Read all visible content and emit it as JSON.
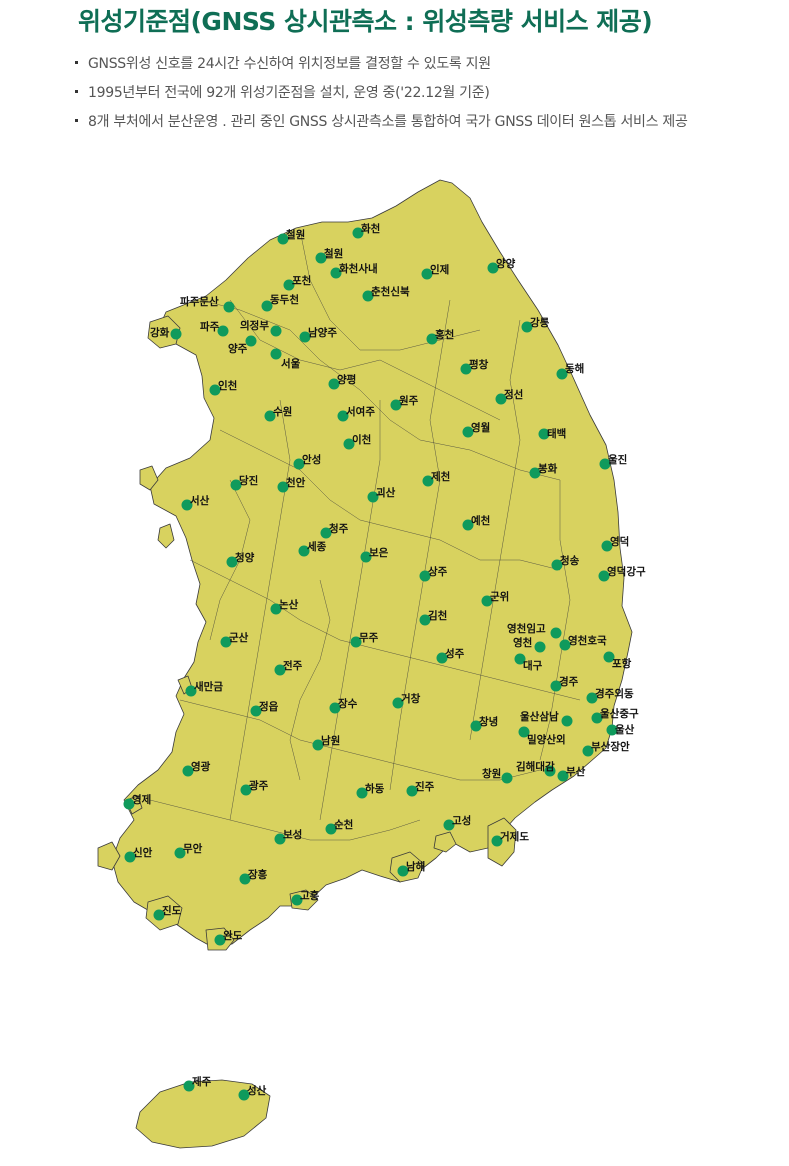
{
  "title": "위성기준점(GNSS 상시관측소 : 위성측량 서비스 제공)",
  "bullets": [
    "GNSS위성 신호를 24시간 수신하여 위치정보를 결정할 수 있도록 지원",
    "1995년부터 전국에 92개 위성기준점을 설치, 운영 중('22.12월 기준)",
    "8개 부처에서 분산운영 . 관리 중인 GNSS 상시관측소를 통합하여 국가 GNSS 데이터 원스톱 서비스 제공"
  ],
  "colors": {
    "title": "#0f6e55",
    "land": "#d8d25f",
    "station": "#0f9a5c"
  },
  "stations": [
    "철원",
    "화천",
    "철원",
    "양양",
    "화천사내",
    "인제",
    "포천",
    "춘천신북",
    "파주문산",
    "동두천",
    "강릉",
    "강화",
    "파주",
    "의정부",
    "남양주",
    "홍천",
    "양주",
    "서울",
    "동해",
    "평창",
    "양평",
    "인천",
    "원주",
    "정선",
    "수원",
    "서여주",
    "태백",
    "영월",
    "이천",
    "울진",
    "안성",
    "봉화",
    "당진",
    "천안",
    "제천",
    "괴산",
    "서산",
    "청주",
    "예천",
    "영덕",
    "세종",
    "보은",
    "청양",
    "청송",
    "상주",
    "영덕강구",
    "군위",
    "논산",
    "김천",
    "영천임고",
    "영천",
    "영천호국",
    "무주",
    "군산",
    "성주",
    "대구",
    "포항",
    "전주",
    "새만금",
    "경주",
    "경주외동",
    "거창",
    "장수",
    "정읍",
    "울산삼남",
    "창녕",
    "울산중구",
    "울산",
    "밀양산외",
    "남원",
    "부산장안",
    "영광",
    "김해대감",
    "창원",
    "부산",
    "광주",
    "하동",
    "진주",
    "영제",
    "고성",
    "순천",
    "거제도",
    "보성",
    "무안",
    "신안",
    "남해",
    "장흥",
    "고흥",
    "진도",
    "완도",
    "제주",
    "성산"
  ]
}
